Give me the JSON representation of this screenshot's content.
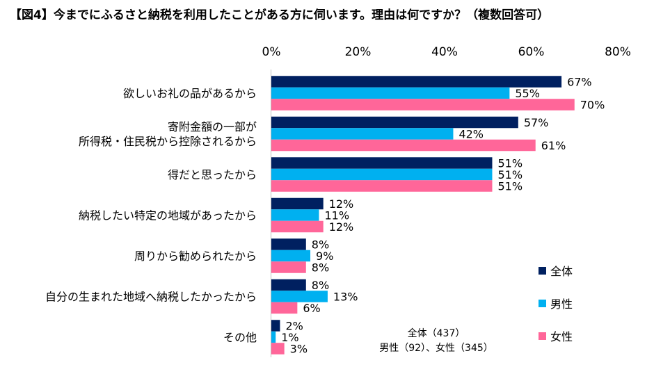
{
  "chart_data": {
    "type": "bar",
    "orientation": "horizontal",
    "title": "【図4】今までにふるさと納税を利用したことがある方に伺います。理由は何ですか？（複数回答可）",
    "categories": [
      [
        "欲しいお礼の品があるから"
      ],
      [
        "寄附金額の一部が",
        "所得税・住民税から控除されるから"
      ],
      [
        "得だと思ったから"
      ],
      [
        "納税したい特定の地域があったから"
      ],
      [
        "周りから勧められたから"
      ],
      [
        "自分の生まれた地域へ納税したかったから"
      ],
      [
        "その他"
      ]
    ],
    "series": [
      {
        "name": "全体",
        "color": "#002060",
        "values": [
          67,
          57,
          51,
          12,
          8,
          8,
          2
        ]
      },
      {
        "name": "男性",
        "color": "#00B0F0",
        "values": [
          55,
          42,
          51,
          11,
          9,
          13,
          1
        ]
      },
      {
        "name": "女性",
        "color": "#FF6699",
        "values": [
          70,
          61,
          51,
          12,
          8,
          6,
          3
        ]
      }
    ],
    "xlim": [
      0,
      80
    ],
    "xticks": [
      "0%",
      "20%",
      "40%",
      "60%",
      "80%"
    ],
    "xtick_values": [
      0,
      20,
      40,
      60,
      80
    ],
    "value_suffix": "%",
    "grid": false,
    "legend_position": "right",
    "note": [
      "全体（437）",
      "男性（92）、女性（345）"
    ]
  }
}
